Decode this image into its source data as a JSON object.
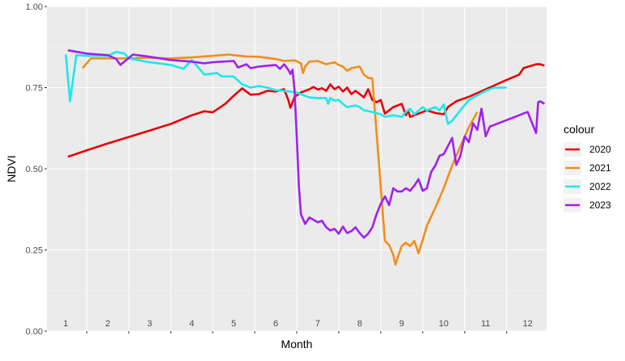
{
  "chart_data": {
    "type": "line",
    "xlabel": "Month",
    "ylabel": "NDVI",
    "ylim": [
      0,
      1
    ],
    "xlim": [
      0.55,
      12.45
    ],
    "y_ticks": [
      "0.00",
      "0.25",
      "0.50",
      "0.75",
      "1.00"
    ],
    "y_tick_values": [
      0,
      0.25,
      0.5,
      0.75,
      1.0
    ],
    "month_labels": [
      "1",
      "2",
      "3",
      "4",
      "5",
      "6",
      "7",
      "8",
      "9",
      "10",
      "11",
      "12"
    ],
    "legend_title": "colour",
    "legend_position": "right",
    "grid": true,
    "series": [
      {
        "name": "2020",
        "color": "#e8000b",
        "points": [
          [
            1.05,
            0.537
          ],
          [
            1.5,
            0.557
          ],
          [
            2.0,
            0.578
          ],
          [
            2.5,
            0.598
          ],
          [
            3.0,
            0.618
          ],
          [
            3.5,
            0.638
          ],
          [
            4.0,
            0.665
          ],
          [
            4.3,
            0.677
          ],
          [
            4.5,
            0.674
          ],
          [
            4.8,
            0.7
          ],
          [
            5.0,
            0.725
          ],
          [
            5.2,
            0.748
          ],
          [
            5.4,
            0.728
          ],
          [
            5.6,
            0.73
          ],
          [
            5.8,
            0.74
          ],
          [
            6.0,
            0.738
          ],
          [
            6.2,
            0.745
          ],
          [
            6.3,
            0.712
          ],
          [
            6.35,
            0.688
          ],
          [
            6.45,
            0.722
          ],
          [
            6.6,
            0.735
          ],
          [
            6.8,
            0.745
          ],
          [
            6.9,
            0.752
          ],
          [
            7.0,
            0.744
          ],
          [
            7.1,
            0.748
          ],
          [
            7.2,
            0.74
          ],
          [
            7.3,
            0.76
          ],
          [
            7.4,
            0.745
          ],
          [
            7.5,
            0.753
          ],
          [
            7.6,
            0.738
          ],
          [
            7.7,
            0.75
          ],
          [
            7.8,
            0.73
          ],
          [
            7.9,
            0.74
          ],
          [
            8.0,
            0.73
          ],
          [
            8.1,
            0.72
          ],
          [
            8.2,
            0.745
          ],
          [
            8.3,
            0.712
          ],
          [
            8.4,
            0.705
          ],
          [
            8.5,
            0.712
          ],
          [
            8.55,
            0.69
          ],
          [
            8.6,
            0.67
          ],
          [
            8.8,
            0.69
          ],
          [
            9.0,
            0.7
          ],
          [
            9.1,
            0.665
          ],
          [
            9.15,
            0.68
          ],
          [
            9.2,
            0.66
          ],
          [
            9.4,
            0.67
          ],
          [
            9.6,
            0.68
          ],
          [
            9.8,
            0.672
          ],
          [
            10.0,
            0.668
          ],
          [
            10.1,
            0.69
          ],
          [
            10.3,
            0.708
          ],
          [
            10.6,
            0.722
          ],
          [
            11.0,
            0.745
          ],
          [
            11.5,
            0.774
          ],
          [
            11.8,
            0.79
          ],
          [
            11.9,
            0.81
          ],
          [
            12.2,
            0.822
          ],
          [
            12.3,
            0.822
          ],
          [
            12.4,
            0.818
          ]
        ]
      },
      {
        "name": "2021",
        "color": "#f28e1c",
        "points": [
          [
            1.4,
            0.81
          ],
          [
            1.6,
            0.84
          ],
          [
            2.0,
            0.84
          ],
          [
            2.5,
            0.84
          ],
          [
            3.0,
            0.842
          ],
          [
            3.5,
            0.84
          ],
          [
            4.0,
            0.843
          ],
          [
            4.5,
            0.848
          ],
          [
            4.9,
            0.852
          ],
          [
            5.0,
            0.85
          ],
          [
            5.3,
            0.846
          ],
          [
            5.6,
            0.845
          ],
          [
            6.0,
            0.838
          ],
          [
            6.2,
            0.832
          ],
          [
            6.45,
            0.834
          ],
          [
            6.6,
            0.825
          ],
          [
            6.65,
            0.795
          ],
          [
            6.7,
            0.815
          ],
          [
            6.8,
            0.83
          ],
          [
            7.0,
            0.832
          ],
          [
            7.2,
            0.822
          ],
          [
            7.4,
            0.828
          ],
          [
            7.5,
            0.82
          ],
          [
            7.6,
            0.815
          ],
          [
            7.7,
            0.802
          ],
          [
            7.8,
            0.81
          ],
          [
            8.0,
            0.815
          ],
          [
            8.1,
            0.79
          ],
          [
            8.2,
            0.78
          ],
          [
            8.3,
            0.778
          ],
          [
            8.4,
            0.612
          ],
          [
            8.55,
            0.36
          ],
          [
            8.6,
            0.278
          ],
          [
            8.7,
            0.265
          ],
          [
            8.8,
            0.235
          ],
          [
            8.85,
            0.205
          ],
          [
            8.9,
            0.225
          ],
          [
            9.0,
            0.262
          ],
          [
            9.1,
            0.272
          ],
          [
            9.2,
            0.262
          ],
          [
            9.3,
            0.278
          ],
          [
            9.4,
            0.24
          ],
          [
            9.5,
            0.28
          ],
          [
            9.6,
            0.325
          ],
          [
            9.8,
            0.38
          ],
          [
            10.0,
            0.44
          ],
          [
            10.2,
            0.51
          ],
          [
            10.4,
            0.57
          ],
          [
            10.6,
            0.628
          ],
          [
            10.8,
            0.675
          ]
        ]
      },
      {
        "name": "2022",
        "color": "#1de8ee",
        "points": [
          [
            1.0,
            0.852
          ],
          [
            1.1,
            0.708
          ],
          [
            1.25,
            0.85
          ],
          [
            1.5,
            0.848
          ],
          [
            2.0,
            0.848
          ],
          [
            2.2,
            0.86
          ],
          [
            2.4,
            0.855
          ],
          [
            2.5,
            0.84
          ],
          [
            3.0,
            0.828
          ],
          [
            3.5,
            0.82
          ],
          [
            3.8,
            0.808
          ],
          [
            4.0,
            0.835
          ],
          [
            4.3,
            0.79
          ],
          [
            4.6,
            0.795
          ],
          [
            4.7,
            0.785
          ],
          [
            5.0,
            0.784
          ],
          [
            5.2,
            0.76
          ],
          [
            5.4,
            0.75
          ],
          [
            5.6,
            0.755
          ],
          [
            5.8,
            0.75
          ],
          [
            6.0,
            0.742
          ],
          [
            6.2,
            0.74
          ],
          [
            6.5,
            0.735
          ],
          [
            6.8,
            0.72
          ],
          [
            7.0,
            0.718
          ],
          [
            7.2,
            0.718
          ],
          [
            7.25,
            0.7
          ],
          [
            7.3,
            0.718
          ],
          [
            7.4,
            0.71
          ],
          [
            7.5,
            0.712
          ],
          [
            7.6,
            0.7
          ],
          [
            7.7,
            0.69
          ],
          [
            7.9,
            0.695
          ],
          [
            8.0,
            0.69
          ],
          [
            8.1,
            0.68
          ],
          [
            8.3,
            0.675
          ],
          [
            8.5,
            0.668
          ],
          [
            8.6,
            0.66
          ],
          [
            8.8,
            0.665
          ],
          [
            9.0,
            0.66
          ],
          [
            9.1,
            0.675
          ],
          [
            9.2,
            0.685
          ],
          [
            9.3,
            0.668
          ],
          [
            9.5,
            0.69
          ],
          [
            9.6,
            0.68
          ],
          [
            9.8,
            0.69
          ],
          [
            9.9,
            0.68
          ],
          [
            10.0,
            0.698
          ],
          [
            10.1,
            0.638
          ],
          [
            10.2,
            0.648
          ],
          [
            10.4,
            0.68
          ],
          [
            10.6,
            0.712
          ],
          [
            11.0,
            0.74
          ],
          [
            11.2,
            0.75
          ],
          [
            11.5,
            0.75
          ]
        ]
      },
      {
        "name": "2023",
        "color": "#a020f0",
        "points": [
          [
            1.05,
            0.865
          ],
          [
            1.5,
            0.855
          ],
          [
            1.8,
            0.852
          ],
          [
            2.0,
            0.85
          ],
          [
            2.2,
            0.838
          ],
          [
            2.3,
            0.82
          ],
          [
            2.6,
            0.852
          ],
          [
            3.0,
            0.845
          ],
          [
            3.5,
            0.835
          ],
          [
            4.0,
            0.83
          ],
          [
            4.3,
            0.825
          ],
          [
            4.5,
            0.828
          ],
          [
            5.0,
            0.832
          ],
          [
            5.1,
            0.812
          ],
          [
            5.3,
            0.822
          ],
          [
            5.4,
            0.81
          ],
          [
            5.6,
            0.815
          ],
          [
            6.0,
            0.82
          ],
          [
            6.1,
            0.808
          ],
          [
            6.2,
            0.822
          ],
          [
            6.3,
            0.805
          ],
          [
            6.35,
            0.792
          ],
          [
            6.4,
            0.805
          ],
          [
            6.45,
            0.74
          ],
          [
            6.5,
            0.6
          ],
          [
            6.55,
            0.45
          ],
          [
            6.6,
            0.36
          ],
          [
            6.7,
            0.33
          ],
          [
            6.8,
            0.35
          ],
          [
            7.0,
            0.335
          ],
          [
            7.1,
            0.34
          ],
          [
            7.2,
            0.32
          ],
          [
            7.3,
            0.31
          ],
          [
            7.4,
            0.315
          ],
          [
            7.5,
            0.3
          ],
          [
            7.6,
            0.322
          ],
          [
            7.7,
            0.302
          ],
          [
            7.8,
            0.308
          ],
          [
            7.9,
            0.32
          ],
          [
            8.0,
            0.302
          ],
          [
            8.1,
            0.288
          ],
          [
            8.2,
            0.3
          ],
          [
            8.3,
            0.32
          ],
          [
            8.4,
            0.36
          ],
          [
            8.5,
            0.392
          ],
          [
            8.6,
            0.415
          ],
          [
            8.7,
            0.388
          ],
          [
            8.8,
            0.44
          ],
          [
            8.9,
            0.43
          ],
          [
            9.0,
            0.43
          ],
          [
            9.1,
            0.44
          ],
          [
            9.2,
            0.432
          ],
          [
            9.3,
            0.448
          ],
          [
            9.4,
            0.468
          ],
          [
            9.5,
            0.432
          ],
          [
            9.6,
            0.44
          ],
          [
            9.7,
            0.49
          ],
          [
            9.8,
            0.51
          ],
          [
            9.9,
            0.54
          ],
          [
            10.0,
            0.545
          ],
          [
            10.2,
            0.595
          ],
          [
            10.3,
            0.512
          ],
          [
            10.4,
            0.54
          ],
          [
            10.5,
            0.6
          ],
          [
            10.6,
            0.582
          ],
          [
            10.7,
            0.64
          ],
          [
            10.8,
            0.62
          ],
          [
            10.9,
            0.685
          ],
          [
            11.0,
            0.6
          ],
          [
            11.1,
            0.63
          ],
          [
            11.5,
            0.65
          ],
          [
            12.0,
            0.675
          ],
          [
            12.2,
            0.61
          ],
          [
            12.25,
            0.705
          ],
          [
            12.3,
            0.708
          ],
          [
            12.4,
            0.7
          ]
        ]
      }
    ]
  }
}
